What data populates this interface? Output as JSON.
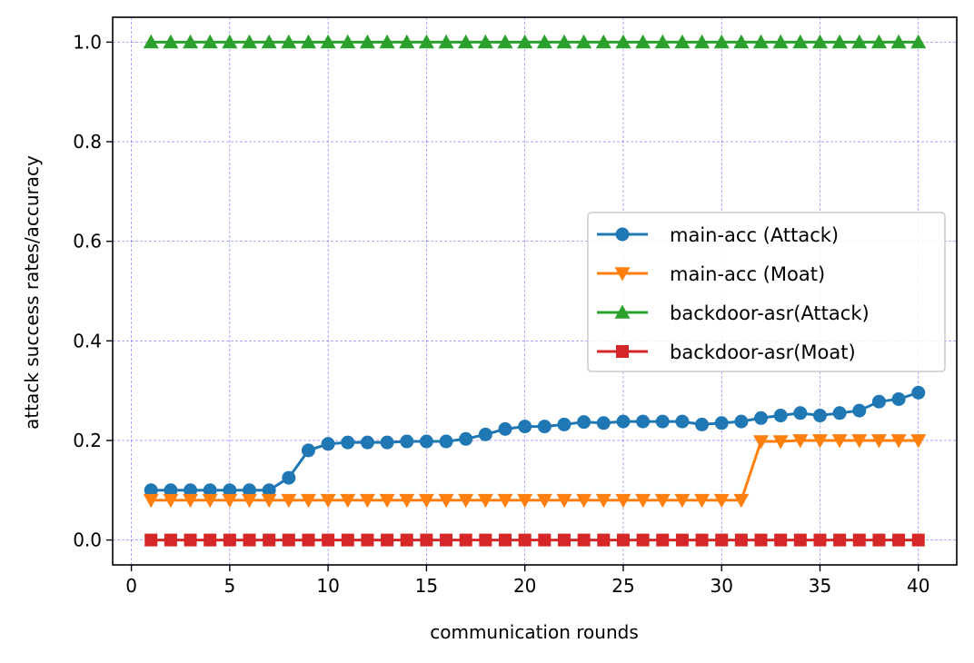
{
  "chart_data": {
    "type": "line",
    "xlabel": "communication rounds",
    "ylabel": "attack success rates/accuracy",
    "xlim": [
      -0.95,
      41.95
    ],
    "ylim": [
      -0.05,
      1.05
    ],
    "xticks": [
      0,
      5,
      10,
      15,
      20,
      25,
      30,
      35,
      40
    ],
    "xtick_labels": [
      "0",
      "5",
      "10",
      "15",
      "20",
      "25",
      "30",
      "35",
      "40"
    ],
    "yticks": [
      0.0,
      0.2,
      0.4,
      0.6,
      0.8,
      1.0
    ],
    "ytick_labels": [
      "0.0",
      "0.2",
      "0.4",
      "0.6",
      "0.8",
      "1.0"
    ],
    "grid": true,
    "legend_position": "center-right",
    "x": [
      1,
      2,
      3,
      4,
      5,
      6,
      7,
      8,
      9,
      10,
      11,
      12,
      13,
      14,
      15,
      16,
      17,
      18,
      19,
      20,
      21,
      22,
      23,
      24,
      25,
      26,
      27,
      28,
      29,
      30,
      31,
      32,
      33,
      34,
      35,
      36,
      37,
      38,
      39,
      40
    ],
    "series": [
      {
        "name": "main-acc (Attack)",
        "color": "#1f77b4",
        "marker": "circle",
        "values": [
          0.1,
          0.1,
          0.1,
          0.1,
          0.1,
          0.1,
          0.1,
          0.125,
          0.18,
          0.193,
          0.196,
          0.196,
          0.196,
          0.198,
          0.198,
          0.198,
          0.203,
          0.212,
          0.223,
          0.228,
          0.228,
          0.232,
          0.237,
          0.235,
          0.238,
          0.238,
          0.238,
          0.238,
          0.232,
          0.235,
          0.238,
          0.245,
          0.25,
          0.255,
          0.25,
          0.255,
          0.26,
          0.278,
          0.283,
          0.296
        ]
      },
      {
        "name": "main-acc (Moat)",
        "color": "#ff7f0e",
        "marker": "triangle-down",
        "values": [
          0.08,
          0.08,
          0.08,
          0.08,
          0.08,
          0.08,
          0.08,
          0.08,
          0.08,
          0.08,
          0.08,
          0.08,
          0.08,
          0.08,
          0.08,
          0.08,
          0.08,
          0.08,
          0.08,
          0.08,
          0.08,
          0.08,
          0.08,
          0.08,
          0.08,
          0.08,
          0.08,
          0.08,
          0.08,
          0.08,
          0.08,
          0.198,
          0.198,
          0.2,
          0.2,
          0.2,
          0.2,
          0.2,
          0.2,
          0.2
        ]
      },
      {
        "name": "backdoor-asr(Attack)",
        "color": "#2ca02c",
        "marker": "triangle-up",
        "values": [
          1.0,
          1.0,
          1.0,
          1.0,
          1.0,
          1.0,
          1.0,
          1.0,
          1.0,
          1.0,
          1.0,
          1.0,
          1.0,
          1.0,
          1.0,
          1.0,
          1.0,
          1.0,
          1.0,
          1.0,
          1.0,
          1.0,
          1.0,
          1.0,
          1.0,
          1.0,
          1.0,
          1.0,
          1.0,
          1.0,
          1.0,
          1.0,
          1.0,
          1.0,
          1.0,
          1.0,
          1.0,
          1.0,
          1.0,
          1.0
        ]
      },
      {
        "name": "backdoor-asr(Moat)",
        "color": "#d62728",
        "marker": "square",
        "values": [
          0.0,
          0.0,
          0.0,
          0.0,
          0.0,
          0.0,
          0.0,
          0.0,
          0.0,
          0.0,
          0.0,
          0.0,
          0.0,
          0.0,
          0.0,
          0.0,
          0.0,
          0.0,
          0.0,
          0.0,
          0.0,
          0.0,
          0.0,
          0.0,
          0.0,
          0.0,
          0.0,
          0.0,
          0.0,
          0.0,
          0.0,
          0.0,
          0.0,
          0.0,
          0.0,
          0.0,
          0.0,
          0.0,
          0.0,
          0.0
        ]
      }
    ]
  }
}
